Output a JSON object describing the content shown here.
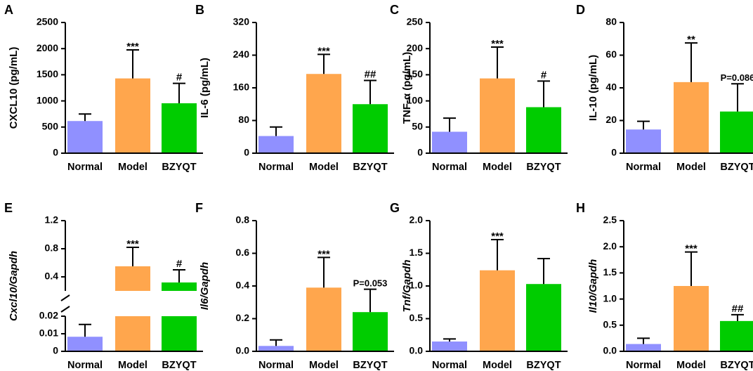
{
  "figure": {
    "colors": {
      "Normal": "#9090ff",
      "Model": "#ffa64d",
      "BZYQT": "#00cc00"
    }
  },
  "chart_data": [
    {
      "panel": "A",
      "type": "bar",
      "ylabel": "CXCL10 (pg/mL)",
      "ylabel_italic": false,
      "categories": [
        "Normal",
        "Model",
        "BZYQT"
      ],
      "values": [
        615,
        1430,
        955
      ],
      "errors": [
        135,
        545,
        380
      ],
      "ylim": [
        0,
        2500
      ],
      "yticks": [
        0,
        500,
        1000,
        1500,
        2000,
        2500
      ],
      "ytick_labels": [
        "0",
        "500",
        "1000",
        "1500",
        "2000",
        "2500"
      ],
      "annotations": [
        "",
        "***",
        "#"
      ]
    },
    {
      "panel": "B",
      "type": "bar",
      "ylabel": "IL-6 (pg/mL)",
      "ylabel_italic": false,
      "categories": [
        "Normal",
        "Model",
        "BZYQT"
      ],
      "values": [
        42,
        194,
        120
      ],
      "errors": [
        22,
        48,
        58
      ],
      "ylim": [
        0,
        320
      ],
      "yticks": [
        0,
        80,
        160,
        240,
        320
      ],
      "ytick_labels": [
        "0",
        "80",
        "160",
        "240",
        "320"
      ],
      "annotations": [
        "",
        "***",
        "##"
      ]
    },
    {
      "panel": "C",
      "type": "bar",
      "ylabel": "TNF-α (pg/mL)",
      "ylabel_italic": false,
      "categories": [
        "Normal",
        "Model",
        "BZYQT"
      ],
      "values": [
        41,
        143,
        88
      ],
      "errors": [
        26,
        60,
        50
      ],
      "ylim": [
        0,
        250
      ],
      "yticks": [
        0,
        50,
        100,
        150,
        200,
        250
      ],
      "ytick_labels": [
        "0",
        "50",
        "100",
        "150",
        "200",
        "250"
      ],
      "annotations": [
        "",
        "***",
        "#"
      ]
    },
    {
      "panel": "D",
      "type": "bar",
      "ylabel": "IL-10 (pg/mL)",
      "ylabel_italic": false,
      "categories": [
        "Normal",
        "Model",
        "BZYQT"
      ],
      "values": [
        14.5,
        43.5,
        25.5
      ],
      "errors": [
        5,
        24,
        17
      ],
      "ylim": [
        0,
        80
      ],
      "yticks": [
        0,
        20,
        40,
        60,
        80
      ],
      "ytick_labels": [
        "0",
        "20",
        "40",
        "60",
        "80"
      ],
      "annotations": [
        "",
        "**",
        "P=0.086"
      ]
    },
    {
      "panel": "E",
      "type": "bar",
      "ylabel": "Cxcl10/Gapdh",
      "ylabel_italic": true,
      "broken_axis": {
        "lower": [
          0,
          0.02
        ],
        "upper": [
          0.2,
          1.2
        ],
        "lower_ticks": [
          0,
          0.01,
          0.02
        ],
        "lower_tick_labels": [
          "0",
          "0.01",
          "0.02"
        ],
        "upper_ticks": [
          0.4,
          0.8,
          1.2
        ],
        "upper_tick_labels": [
          "0.4",
          "0.8",
          "1.2"
        ]
      },
      "categories": [
        "Normal",
        "Model",
        "BZYQT"
      ],
      "values": [
        0.0083,
        0.55,
        0.32
      ],
      "errors": [
        0.007,
        0.27,
        0.18
      ],
      "annotations": [
        "",
        "***",
        "#"
      ]
    },
    {
      "panel": "F",
      "type": "bar",
      "ylabel": "Il6/Gapdh",
      "ylabel_italic": true,
      "categories": [
        "Normal",
        "Model",
        "BZYQT"
      ],
      "values": [
        0.033,
        0.39,
        0.24
      ],
      "errors": [
        0.037,
        0.185,
        0.14
      ],
      "ylim": [
        0,
        0.8
      ],
      "yticks": [
        0,
        0.2,
        0.4,
        0.6,
        0.8
      ],
      "ytick_labels": [
        "0.0",
        "0.2",
        "0.4",
        "0.6",
        "0.8"
      ],
      "annotations": [
        "",
        "***",
        "P=0.053"
      ]
    },
    {
      "panel": "G",
      "type": "bar",
      "ylabel": "Tnf/Gapdh",
      "ylabel_italic": true,
      "categories": [
        "Normal",
        "Model",
        "BZYQT"
      ],
      "values": [
        0.15,
        1.24,
        1.03
      ],
      "errors": [
        0.04,
        0.47,
        0.39
      ],
      "ylim": [
        0,
        2.0
      ],
      "yticks": [
        0,
        0.5,
        1.0,
        1.5,
        2.0
      ],
      "ytick_labels": [
        "0.0",
        "0.5",
        "1.0",
        "1.5",
        "2.0"
      ],
      "annotations": [
        "",
        "***",
        ""
      ]
    },
    {
      "panel": "H",
      "type": "bar",
      "ylabel": "Il10/Gapdh",
      "ylabel_italic": true,
      "categories": [
        "Normal",
        "Model",
        "BZYQT"
      ],
      "values": [
        0.14,
        1.25,
        0.58
      ],
      "errors": [
        0.11,
        0.65,
        0.12
      ],
      "ylim": [
        0,
        2.5
      ],
      "yticks": [
        0,
        0.5,
        1.0,
        1.5,
        2.0,
        2.5
      ],
      "ytick_labels": [
        "0.0",
        "0.5",
        "1.0",
        "1.5",
        "2.0",
        "2.5"
      ],
      "annotations": [
        "",
        "***",
        "##"
      ]
    }
  ]
}
